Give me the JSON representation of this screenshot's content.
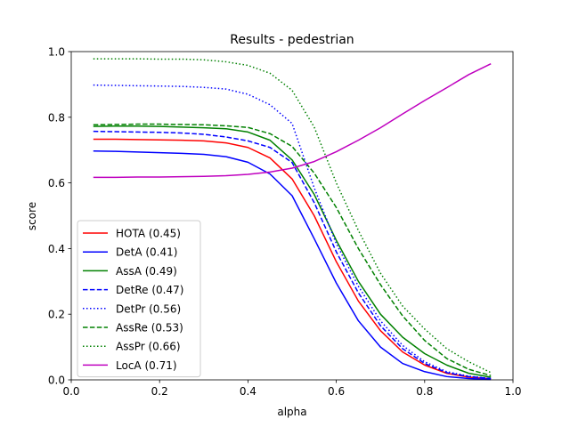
{
  "chart_data": {
    "type": "line",
    "title": "Results - pedestrian",
    "xlabel": "alpha",
    "ylabel": "score",
    "xlim": [
      0.0,
      1.0
    ],
    "ylim": [
      0.0,
      1.0
    ],
    "xticks": [
      "0.0",
      "0.2",
      "0.4",
      "0.6",
      "0.8",
      "1.0"
    ],
    "yticks": [
      "0.0",
      "0.2",
      "0.4",
      "0.6",
      "0.8",
      "1.0"
    ],
    "grid": false,
    "legend_position": "lower-left",
    "x": [
      0.05,
      0.1,
      0.15,
      0.2,
      0.25,
      0.3,
      0.35,
      0.4,
      0.45,
      0.5,
      0.55,
      0.6,
      0.65,
      0.7,
      0.75,
      0.8,
      0.85,
      0.9,
      0.95
    ],
    "series": [
      {
        "name": "HOTA (0.45)",
        "color": "#ff0000",
        "dash": "solid",
        "values": [
          0.733,
          0.733,
          0.732,
          0.731,
          0.73,
          0.728,
          0.722,
          0.708,
          0.676,
          0.612,
          0.5,
          0.36,
          0.24,
          0.15,
          0.085,
          0.045,
          0.02,
          0.008,
          0.003
        ]
      },
      {
        "name": "DetA (0.41)",
        "color": "#0000ff",
        "dash": "solid",
        "values": [
          0.697,
          0.696,
          0.694,
          0.692,
          0.69,
          0.687,
          0.68,
          0.663,
          0.627,
          0.561,
          0.43,
          0.295,
          0.18,
          0.1,
          0.05,
          0.025,
          0.01,
          0.004,
          0.001
        ]
      },
      {
        "name": "AssA (0.49)",
        "color": "#008000",
        "dash": "solid",
        "values": [
          0.772,
          0.773,
          0.773,
          0.772,
          0.77,
          0.768,
          0.765,
          0.755,
          0.73,
          0.67,
          0.565,
          0.425,
          0.3,
          0.2,
          0.13,
          0.08,
          0.045,
          0.02,
          0.008
        ]
      },
      {
        "name": "DetRe (0.47)",
        "color": "#0000ff",
        "dash": "dashed",
        "values": [
          0.757,
          0.756,
          0.755,
          0.754,
          0.752,
          0.748,
          0.74,
          0.728,
          0.708,
          0.662,
          0.54,
          0.39,
          0.265,
          0.165,
          0.095,
          0.05,
          0.022,
          0.01,
          0.004
        ]
      },
      {
        "name": "DetPr (0.56)",
        "color": "#0000ff",
        "dash": "dotted",
        "values": [
          0.898,
          0.897,
          0.896,
          0.895,
          0.894,
          0.891,
          0.886,
          0.87,
          0.838,
          0.781,
          0.585,
          0.415,
          0.285,
          0.18,
          0.105,
          0.055,
          0.025,
          0.011,
          0.004
        ]
      },
      {
        "name": "AssRe (0.53)",
        "color": "#008000",
        "dash": "dashed",
        "values": [
          0.777,
          0.778,
          0.779,
          0.779,
          0.778,
          0.777,
          0.774,
          0.769,
          0.75,
          0.711,
          0.63,
          0.525,
          0.4,
          0.29,
          0.195,
          0.12,
          0.065,
          0.032,
          0.013
        ]
      },
      {
        "name": "AssPr (0.66)",
        "color": "#008000",
        "dash": "dotted",
        "values": [
          0.978,
          0.978,
          0.978,
          0.977,
          0.977,
          0.975,
          0.969,
          0.958,
          0.934,
          0.882,
          0.77,
          0.6,
          0.455,
          0.325,
          0.225,
          0.155,
          0.095,
          0.055,
          0.022
        ]
      },
      {
        "name": "LocA (0.71)",
        "color": "#bf00bf",
        "dash": "solid",
        "values": [
          0.617,
          0.617,
          0.618,
          0.618,
          0.619,
          0.62,
          0.622,
          0.626,
          0.633,
          0.645,
          0.665,
          0.695,
          0.73,
          0.768,
          0.81,
          0.851,
          0.89,
          0.93,
          0.963
        ]
      }
    ]
  }
}
